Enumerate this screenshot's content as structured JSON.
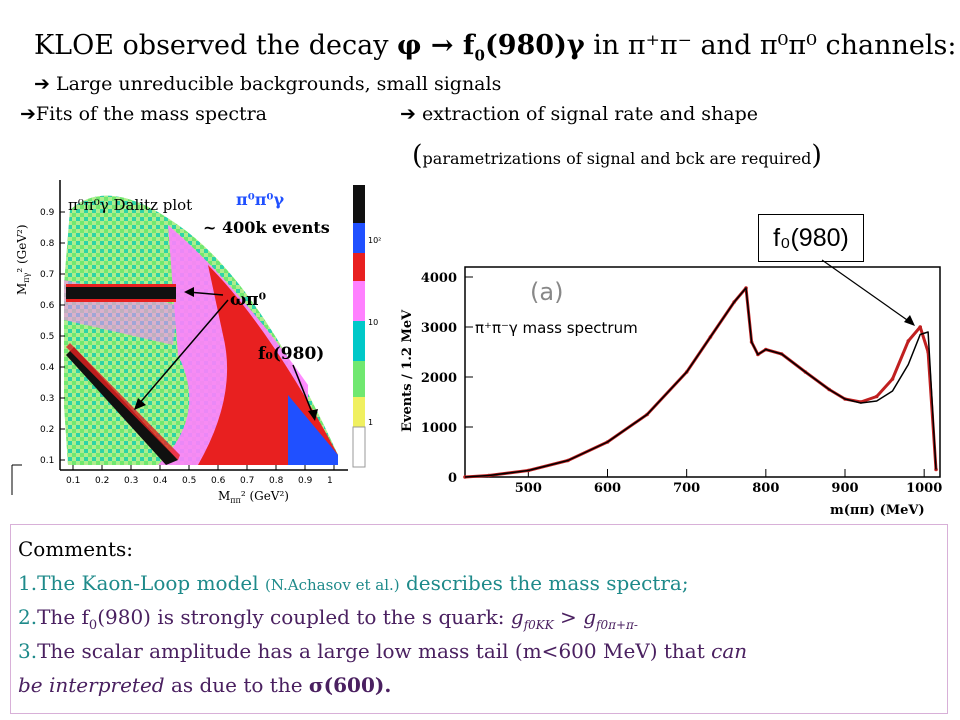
{
  "title": {
    "prefix": "KLOE observed the decay ",
    "decay": "φ → f",
    "decay_sub": "0",
    "decay_rest": "(980)γ",
    "mid": " in ",
    "ch1": "π⁺π⁻",
    "and": " and ",
    "ch2": "π⁰π⁰",
    "suffix": " channels:"
  },
  "bullets": {
    "b1": "➔ Large unreducible backgrounds, small signals",
    "b2a": "➔Fits of the mass spectra",
    "b2b": "➔ extraction of signal rate and shape",
    "b3_open": "(",
    "b3": "parametrizations of signal and bck are required",
    "b3_close": ")"
  },
  "dalitz": {
    "caption": "π⁰π⁰γ Dalitz plot",
    "legend_title": "π⁰π⁰γ",
    "events": "~ 400k events",
    "label_omega": "ωπ⁰",
    "label_f0": "f₀(980)",
    "ylabel": "M",
    "ylabel_sub": "πγ",
    "ylabel_unit": "² (GeV²)",
    "xlabel": "M",
    "xlabel_sub": "ππ",
    "xlabel_unit": "² (GeV²)",
    "x_ticks": [
      "0.1",
      "0.2",
      "0.3",
      "0.4",
      "0.5",
      "0.6",
      "0.7",
      "0.8",
      "0.9",
      "1"
    ],
    "y_ticks": [
      "0.1",
      "0.2",
      "0.3",
      "0.4",
      "0.5",
      "0.6",
      "0.7",
      "0.8",
      "0.9"
    ],
    "scale_ticks": [
      "10²",
      "10",
      "1"
    ],
    "colors": [
      "#0000b0",
      "#2050ff",
      "#00c8c8",
      "#70e870",
      "#d8f0a0",
      "#ff80ff",
      "#e82020",
      "#101010"
    ]
  },
  "spectrum": {
    "panel_label": "(a)",
    "caption": "π⁺π⁻γ mass spectrum",
    "ylabel": "Events / 1.2 MeV",
    "xlabel": "m(ππ) (MeV)",
    "y_ticks": [
      "0",
      "1000",
      "2000",
      "3000",
      "4000"
    ],
    "x_ticks": [
      "500",
      "600",
      "700",
      "800",
      "900",
      "1000"
    ],
    "callout": "f₀(980)"
  },
  "chart_data": {
    "type": "line",
    "x": [
      420,
      450,
      500,
      550,
      600,
      650,
      700,
      730,
      760,
      775,
      782,
      790,
      800,
      820,
      850,
      880,
      900,
      920,
      940,
      960,
      980,
      995,
      1005,
      1015
    ],
    "series": [
      {
        "values": [
          0,
          30,
          130,
          330,
          700,
          1250,
          2100,
          2800,
          3500,
          3780,
          2700,
          2450,
          2550,
          2460,
          2100,
          1750,
          1560,
          1500,
          1610,
          1960,
          2720,
          3000,
          2500,
          150
        ]
      },
      {
        "values": [
          0,
          30,
          130,
          330,
          700,
          1250,
          2100,
          2800,
          3500,
          3780,
          2700,
          2450,
          2550,
          2460,
          2100,
          1750,
          1560,
          1480,
          1520,
          1720,
          2250,
          2850,
          2900,
          150
        ]
      }
    ],
    "xlim": [
      420,
      1020
    ],
    "ylim": [
      0,
      4200
    ],
    "xlabel": "m(ππ) (MeV)",
    "ylabel": "Events / 1.2 MeV"
  },
  "comments": {
    "heading": "Comments:",
    "c1_num": "1.",
    "c1_main": "The Kaon-Loop model ",
    "c1_ref": "(N.Achasov et al.)",
    "c1_end": " describes the mass spectra;",
    "c2_num": "2.",
    "c2_main": "The f",
    "c2_sub": "0",
    "c2_rest": "(980) is strongly coupled to the s quark: ",
    "c2_g1": "g",
    "c2_g1_sub": "f0KK",
    "c2_gt": " > ",
    "c2_g2": "g",
    "c2_g2_sub": "f0π+π-",
    "c3_num": "3.",
    "c3_main": "The scalar amplitude has a large low mass tail (m<600 MeV) that ",
    "c3_can": "can",
    "c3_be": "be interpreted",
    "c3_as": " as due to the ",
    "c3_sigma": "σ(600)."
  }
}
